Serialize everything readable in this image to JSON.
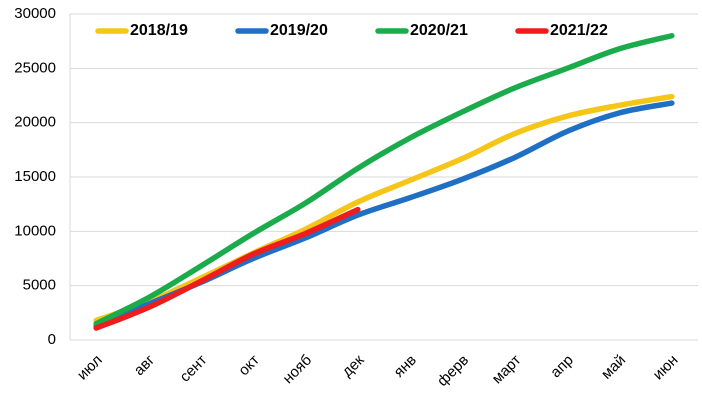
{
  "chart_data": {
    "type": "line",
    "categories": [
      "июл",
      "авг",
      "сент",
      "окт",
      "нояб",
      "дек",
      "янв",
      "ферв",
      "март",
      "апр",
      "май",
      "июн"
    ],
    "series": [
      {
        "name": "2018/19",
        "color": "#f5c518",
        "values": [
          1800,
          3500,
          5700,
          8000,
          10200,
          12700,
          14700,
          16700,
          19000,
          20600,
          21600,
          22400
        ]
      },
      {
        "name": "2019/20",
        "color": "#1f6fc5",
        "values": [
          1300,
          3300,
          5300,
          7500,
          9400,
          11500,
          13100,
          14800,
          16800,
          19200,
          20900,
          21800
        ]
      },
      {
        "name": "2020/21",
        "color": "#1aab4b",
        "values": [
          1500,
          3900,
          6800,
          9800,
          12600,
          15800,
          18600,
          21000,
          23200,
          25000,
          26800,
          28000
        ]
      },
      {
        "name": "2021/22",
        "color": "#ee1c1c",
        "values": [
          1100,
          3000,
          5400,
          7900,
          9800,
          12000,
          null,
          null,
          null,
          null,
          null,
          null
        ]
      }
    ],
    "ylim": [
      0,
      30000
    ],
    "yticks": [
      0,
      5000,
      10000,
      15000,
      20000,
      25000,
      30000
    ],
    "grid": true,
    "legend": "top"
  }
}
